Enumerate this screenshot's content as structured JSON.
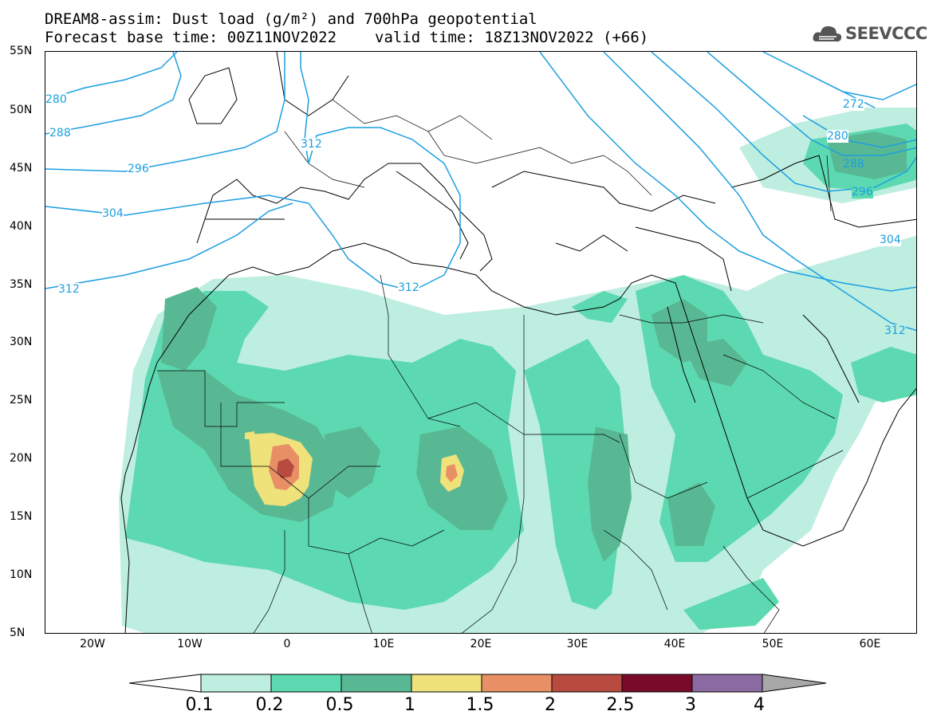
{
  "title_line1": "DREAM8-assim: Dust load (g/m²) and 700hPa geopotential",
  "base_time_label": "Forecast base time: 00Z11NOV2022",
  "valid_time_label": "valid time: 18Z13NOV2022 (+66)",
  "logo_text": "SEEVCCC",
  "colors": {
    "contour": "#1c9fe0",
    "levels": [
      "#bdeee0",
      "#5cd9b0",
      "#59b894",
      "#f0e27a",
      "#e98f66",
      "#b84b3f",
      "#7a0a2a",
      "#8a6aa0",
      "#a8a8a8"
    ]
  },
  "lat_labels": [
    "55N",
    "50N",
    "45N",
    "40N",
    "35N",
    "30N",
    "25N",
    "20N",
    "15N",
    "10N",
    "5N"
  ],
  "lon_labels": [
    "20W",
    "10W",
    "0",
    "10E",
    "20E",
    "30E",
    "40E",
    "50E",
    "60E"
  ],
  "contour_labels": [
    "280",
    "288",
    "296",
    "304",
    "312",
    "312",
    "312",
    "272",
    "280",
    "288",
    "296",
    "304",
    "312"
  ],
  "colorbar_labels": [
    "0.1",
    "0.2",
    "0.5",
    "1",
    "1.5",
    "2",
    "2.5",
    "3",
    "4"
  ]
}
